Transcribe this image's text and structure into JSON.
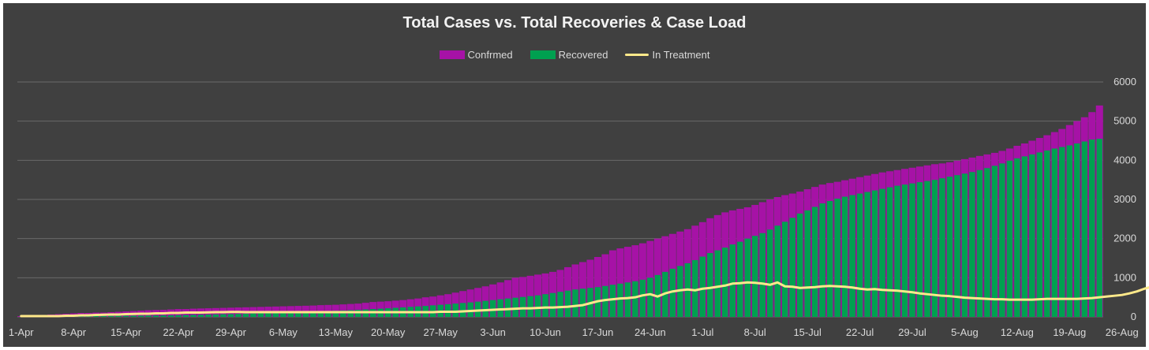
{
  "chart_data": {
    "type": "bar",
    "title": "Total Cases vs. Total Recoveries & Case Load",
    "xlabel": "",
    "ylabel": "",
    "ylim": [
      0,
      6000
    ],
    "yticks": [
      0,
      1000,
      2000,
      3000,
      4000,
      5000,
      6000
    ],
    "x_tick_labels": [
      "1-Apr",
      "8-Apr",
      "15-Apr",
      "22-Apr",
      "29-Apr",
      "6-May",
      "13-May",
      "20-May",
      "27-May",
      "3-Jun",
      "10-Jun",
      "17-Jun",
      "24-Jun",
      "1-Jul",
      "8-Jul",
      "15-Jul",
      "22-Jul",
      "29-Jul",
      "5-Aug",
      "12-Aug",
      "19-Aug",
      "26-Aug"
    ],
    "grid": true,
    "legend_position": "top",
    "colors": {
      "background": "#404040",
      "confirmed": "#a612a6",
      "recovered": "#00a050",
      "in_treatment": "#ffe98a",
      "grid": "#6a6a6a"
    },
    "series": [
      {
        "name": "Confrmed",
        "kind": "bar",
        "values": [
          20,
          30,
          40,
          50,
          60,
          70,
          80,
          90,
          100,
          100,
          110,
          110,
          120,
          130,
          140,
          150,
          160,
          170,
          175,
          180,
          190,
          200,
          200,
          210,
          215,
          220,
          225,
          230,
          235,
          240,
          245,
          250,
          255,
          260,
          265,
          270,
          275,
          280,
          285,
          290,
          300,
          305,
          310,
          320,
          330,
          340,
          360,
          380,
          390,
          400,
          415,
          430,
          450,
          470,
          500,
          520,
          550,
          580,
          620,
          660,
          700,
          740,
          780,
          830,
          880,
          940,
          1000,
          1020,
          1050,
          1080,
          1110,
          1150,
          1200,
          1270,
          1340,
          1400,
          1460,
          1530,
          1600,
          1700,
          1750,
          1790,
          1830,
          1880,
          1940,
          2000,
          2060,
          2120,
          2180,
          2240,
          2330,
          2420,
          2520,
          2600,
          2670,
          2720,
          2760,
          2800,
          2860,
          2930,
          3000,
          3060,
          3110,
          3150,
          3200,
          3260,
          3320,
          3380,
          3420,
          3450,
          3490,
          3530,
          3570,
          3610,
          3650,
          3690,
          3720,
          3750,
          3780,
          3810,
          3840,
          3870,
          3900,
          3920,
          3950,
          3990,
          4030,
          4070,
          4110,
          4150,
          4190,
          4240,
          4300,
          4370,
          4430,
          4500,
          4570,
          4640,
          4720,
          4800,
          4900,
          5000,
          5100,
          5230,
          5400
        ]
      },
      {
        "name": "Recovered",
        "kind": "bar",
        "values": [
          0,
          2,
          4,
          6,
          8,
          10,
          12,
          14,
          16,
          18,
          20,
          22,
          24,
          26,
          28,
          30,
          32,
          34,
          36,
          38,
          40,
          44,
          48,
          52,
          56,
          60,
          64,
          68,
          72,
          76,
          80,
          86,
          92,
          98,
          104,
          110,
          116,
          122,
          128,
          134,
          140,
          148,
          156,
          164,
          172,
          180,
          190,
          200,
          210,
          220,
          232,
          244,
          256,
          268,
          280,
          295,
          310,
          325,
          340,
          355,
          370,
          390,
          410,
          430,
          450,
          470,
          490,
          510,
          530,
          550,
          580,
          610,
          640,
          670,
          700,
          720,
          740,
          760,
          790,
          820,
          850,
          880,
          910,
          950,
          1000,
          1070,
          1150,
          1230,
          1300,
          1370,
          1450,
          1540,
          1630,
          1700,
          1770,
          1850,
          1920,
          2000,
          2070,
          2140,
          2230,
          2330,
          2430,
          2530,
          2640,
          2720,
          2810,
          2900,
          2960,
          3020,
          3070,
          3110,
          3150,
          3190,
          3230,
          3270,
          3310,
          3350,
          3380,
          3410,
          3440,
          3470,
          3500,
          3540,
          3580,
          3620,
          3660,
          3700,
          3750,
          3800,
          3860,
          3920,
          3990,
          4050,
          4100,
          4150,
          4200,
          4250,
          4300,
          4340,
          4380,
          4430,
          4480,
          4530,
          4550
        ]
      },
      {
        "name": "In Treatment",
        "kind": "line",
        "values": [
          20,
          20,
          20,
          20,
          20,
          20,
          30,
          30,
          40,
          40,
          50,
          55,
          60,
          60,
          70,
          75,
          80,
          80,
          90,
          90,
          100,
          100,
          110,
          110,
          110,
          115,
          120,
          120,
          125,
          125,
          120,
          120,
          120,
          120,
          120,
          120,
          120,
          120,
          120,
          120,
          120,
          120,
          120,
          120,
          120,
          120,
          120,
          120,
          120,
          120,
          120,
          120,
          120,
          120,
          120,
          120,
          130,
          130,
          130,
          140,
          150,
          160,
          170,
          180,
          190,
          200,
          210,
          220,
          220,
          230,
          240,
          240,
          250,
          260,
          280,
          300,
          350,
          400,
          430,
          450,
          470,
          480,
          500,
          550,
          580,
          520,
          600,
          650,
          680,
          700,
          680,
          720,
          740,
          770,
          800,
          850,
          860,
          880,
          870,
          850,
          820,
          880,
          780,
          770,
          740,
          750,
          760,
          780,
          790,
          780,
          770,
          750,
          720,
          700,
          710,
          690,
          680,
          670,
          650,
          630,
          600,
          580,
          560,
          540,
          530,
          510,
          490,
          480,
          470,
          460,
          450,
          450,
          440,
          440,
          440,
          440,
          450,
          460,
          460,
          460,
          460,
          460,
          470,
          480,
          500,
          520,
          540,
          560,
          600,
          650,
          720,
          770
        ]
      }
    ]
  }
}
